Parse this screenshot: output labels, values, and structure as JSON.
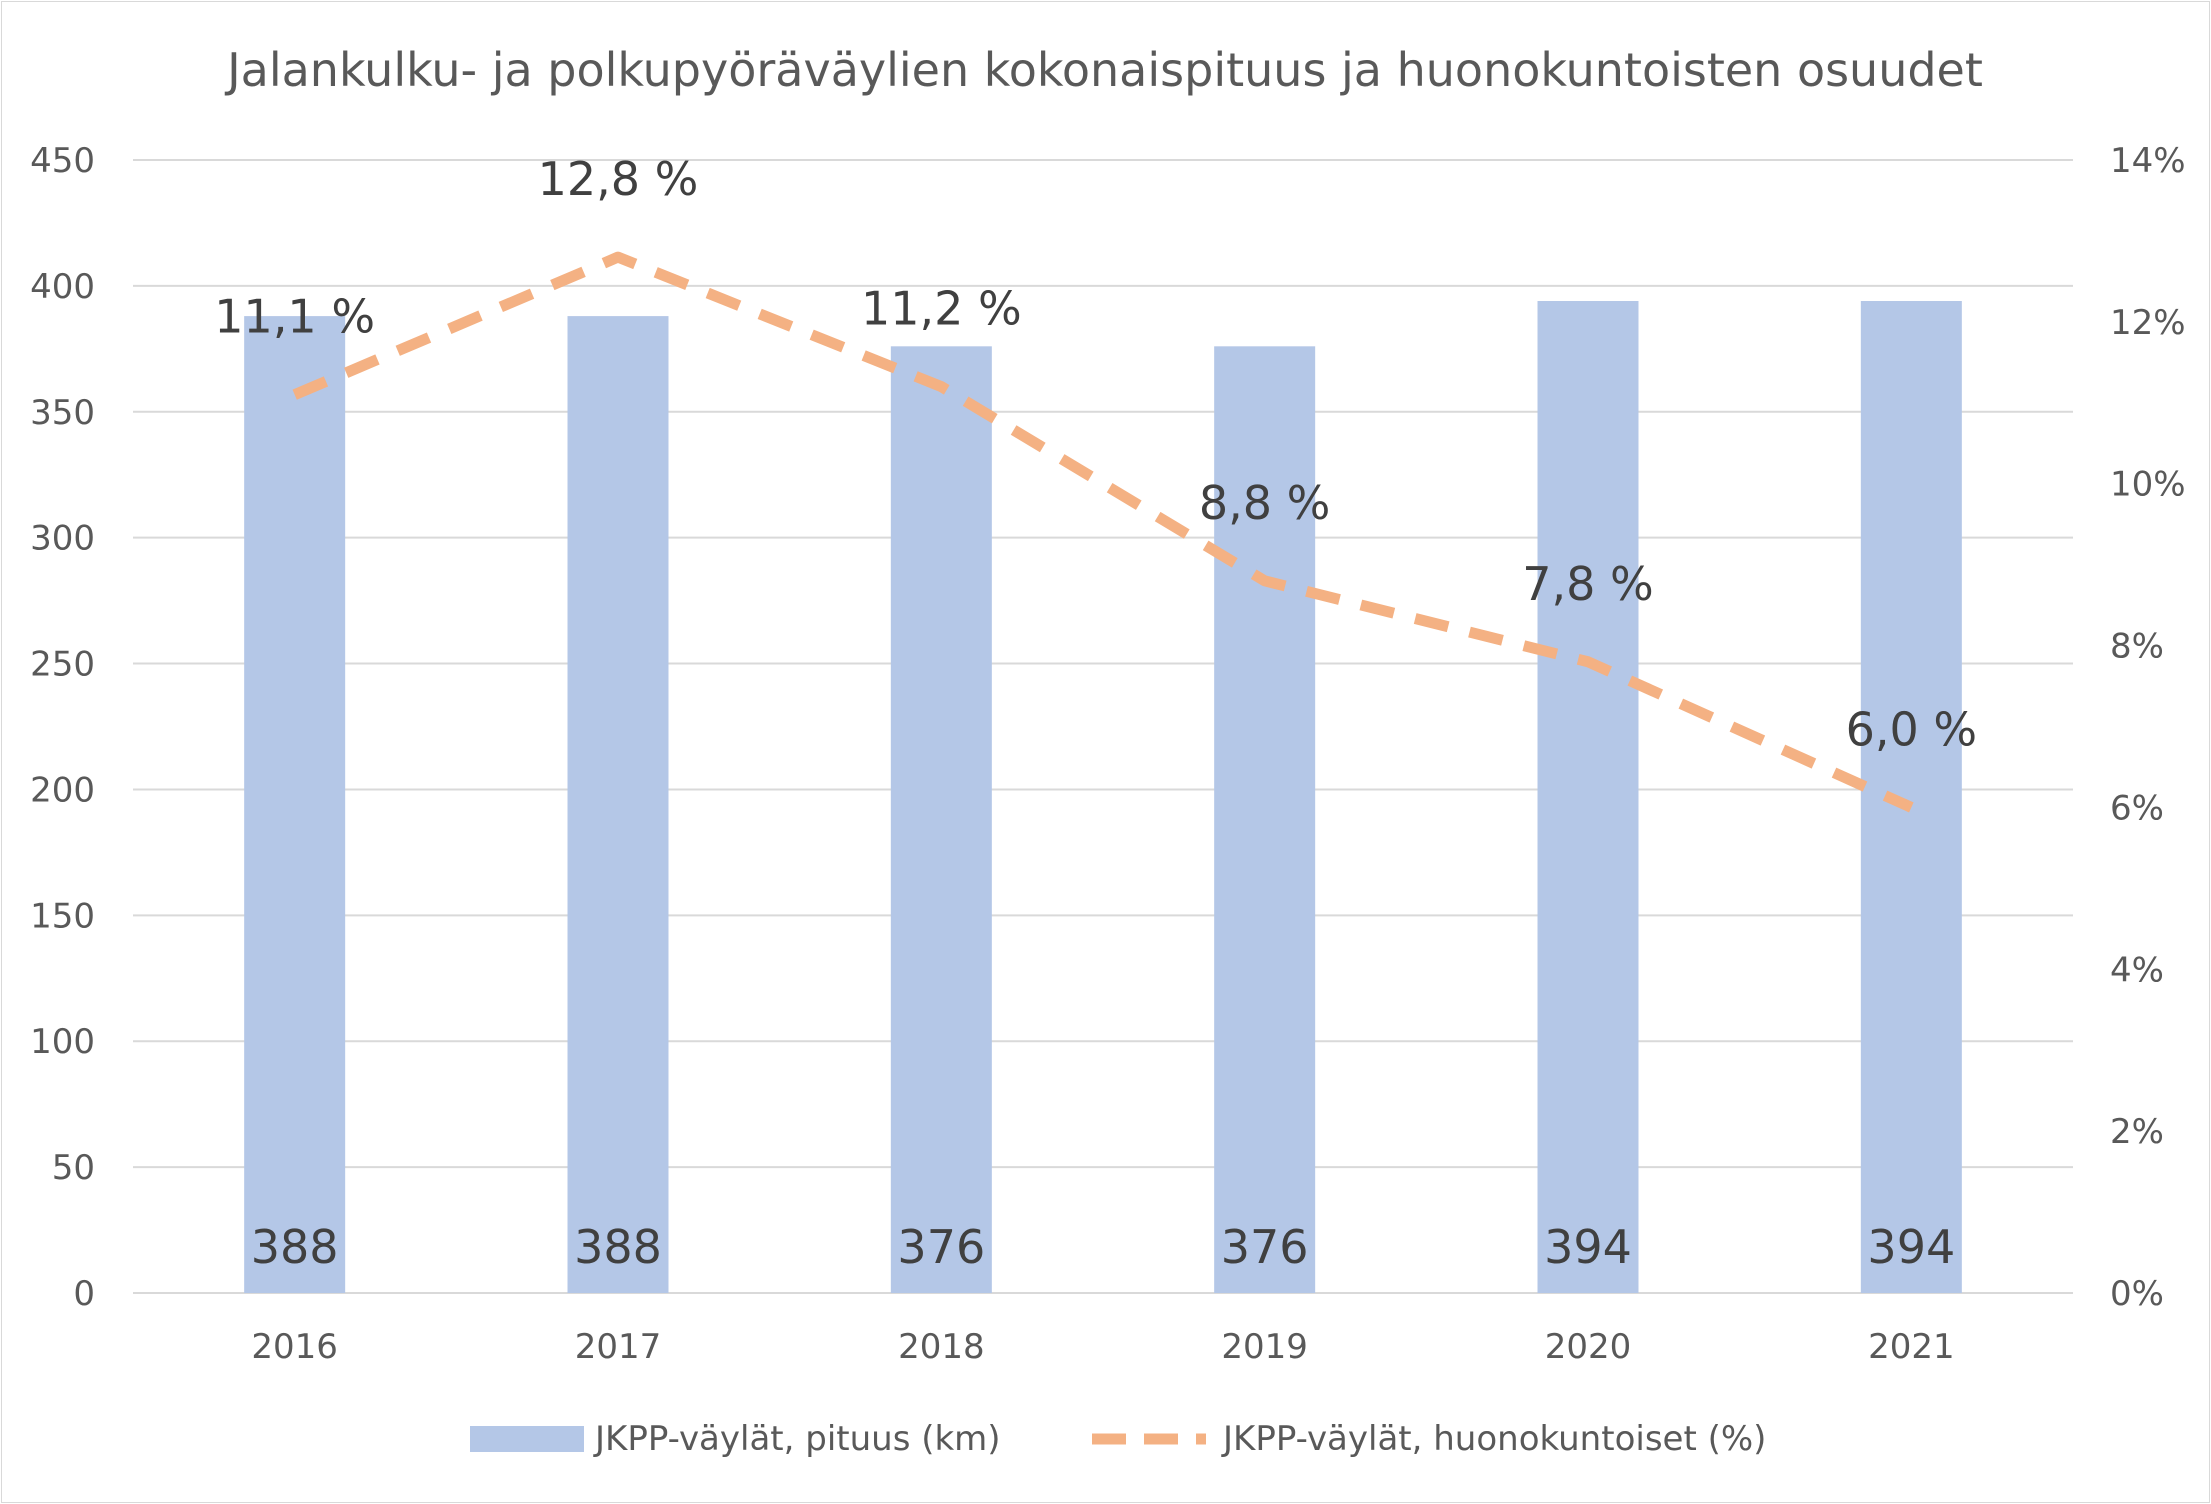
{
  "chart_data": {
    "type": "bar",
    "title": "Jalankulku- ja polkupyöräväylien kokonaispituus ja huonokuntoisten osuudet",
    "categories": [
      "2016",
      "2017",
      "2018",
      "2019",
      "2020",
      "2021"
    ],
    "series": [
      {
        "name": "JKPP-väylät, pituus (km)",
        "type": "bar",
        "axis": "left",
        "color": "#b4c7e7",
        "values": [
          388,
          388,
          376,
          376,
          394,
          394
        ],
        "labels": [
          "388",
          "388",
          "376",
          "376",
          "394",
          "394"
        ]
      },
      {
        "name": "JKPP-väylät, huonokuntoiset (%)",
        "type": "line",
        "style": "dashed",
        "axis": "right",
        "color": "#f4b183",
        "values": [
          11.1,
          12.8,
          11.2,
          8.8,
          7.8,
          6.0
        ],
        "labels": [
          "11,1 %",
          "12,8 %",
          "11,2 %",
          "8,8 %",
          "7,8 %",
          "6,0 %"
        ]
      }
    ],
    "y_left": {
      "ylim": [
        0,
        450
      ],
      "ticks": [
        0,
        50,
        100,
        150,
        200,
        250,
        300,
        350,
        400,
        450
      ],
      "tick_labels": [
        "0",
        "50",
        "100",
        "150",
        "200",
        "250",
        "300",
        "350",
        "400",
        "450"
      ]
    },
    "y_right": {
      "ylim": [
        0,
        14
      ],
      "ticks": [
        0,
        2,
        4,
        6,
        8,
        10,
        12,
        14
      ],
      "tick_labels": [
        "0%",
        "2%",
        "4%",
        "6%",
        "8%",
        "10%",
        "12%",
        "14%"
      ]
    },
    "grid": true,
    "legend": "bottom",
    "colors": {
      "grid": "#d9d9d9",
      "text": "#595959",
      "label": "#404040"
    }
  }
}
